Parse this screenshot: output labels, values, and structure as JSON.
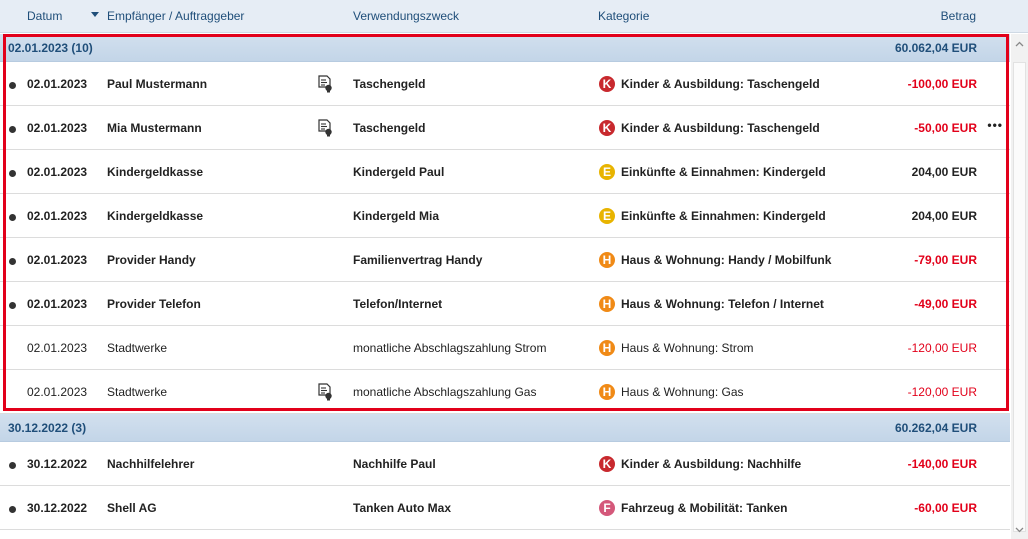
{
  "header": {
    "date": "Datum",
    "payee": "Empfänger / Auftraggeber",
    "purpose": "Verwendungszweck",
    "category": "Kategorie",
    "amount": "Betrag"
  },
  "colors": {
    "negative": "#e2001a",
    "highlight": "#e2001a",
    "cat_K": "#c8292e",
    "cat_E": "#e8b400",
    "cat_H": "#f08a16",
    "cat_F": "#d4587a"
  },
  "groups": [
    {
      "title": "02.01.2023 (10)",
      "amount": "60.062,04 EUR",
      "rows": [
        {
          "unread": true,
          "date": "02.01.2023",
          "payee": "Paul Mustermann",
          "note": true,
          "purpose": "Taschengeld",
          "cat_letter": "K",
          "category": "Kinder & Ausbildung: Taschengeld",
          "amount": "-100,00 EUR",
          "negative": true,
          "more": false
        },
        {
          "unread": true,
          "date": "02.01.2023",
          "payee": "Mia Mustermann",
          "note": true,
          "purpose": "Taschengeld",
          "cat_letter": "K",
          "category": "Kinder & Ausbildung: Taschengeld",
          "amount": "-50,00 EUR",
          "negative": true,
          "more": true
        },
        {
          "unread": true,
          "date": "02.01.2023",
          "payee": "Kindergeldkasse",
          "note": false,
          "purpose": "Kindergeld Paul",
          "cat_letter": "E",
          "category": "Einkünfte & Einnahmen: Kindergeld",
          "amount": "204,00 EUR",
          "negative": false,
          "more": false
        },
        {
          "unread": true,
          "date": "02.01.2023",
          "payee": "Kindergeldkasse",
          "note": false,
          "purpose": "Kindergeld Mia",
          "cat_letter": "E",
          "category": "Einkünfte & Einnahmen: Kindergeld",
          "amount": "204,00 EUR",
          "negative": false,
          "more": false
        },
        {
          "unread": true,
          "date": "02.01.2023",
          "payee": "Provider Handy",
          "note": false,
          "purpose": "Familienvertrag Handy",
          "cat_letter": "H",
          "category": "Haus & Wohnung: Handy / Mobilfunk",
          "amount": "-79,00 EUR",
          "negative": true,
          "more": false
        },
        {
          "unread": true,
          "date": "02.01.2023",
          "payee": "Provider Telefon",
          "note": false,
          "purpose": "Telefon/Internet",
          "cat_letter": "H",
          "category": "Haus & Wohnung: Telefon / Internet",
          "amount": "-49,00 EUR",
          "negative": true,
          "more": false
        },
        {
          "unread": false,
          "date": "02.01.2023",
          "payee": "Stadtwerke",
          "note": false,
          "purpose": "monatliche Abschlagszahlung Strom",
          "cat_letter": "H",
          "category": "Haus & Wohnung: Strom",
          "amount": "-120,00 EUR",
          "negative": true,
          "more": false
        },
        {
          "unread": false,
          "date": "02.01.2023",
          "payee": "Stadtwerke",
          "note": true,
          "purpose": "monatliche Abschlagszahlung Gas",
          "cat_letter": "H",
          "category": "Haus & Wohnung: Gas",
          "amount": "-120,00 EUR",
          "negative": true,
          "more": false
        }
      ]
    },
    {
      "title": "30.12.2022 (3)",
      "amount": "60.262,04 EUR",
      "rows": [
        {
          "unread": true,
          "date": "30.12.2022",
          "payee": "Nachhilfelehrer",
          "note": false,
          "purpose": "Nachhilfe Paul",
          "cat_letter": "K",
          "category": "Kinder & Ausbildung: Nachhilfe",
          "amount": "-140,00 EUR",
          "negative": true,
          "more": false
        },
        {
          "unread": true,
          "date": "30.12.2022",
          "payee": "Shell AG",
          "note": false,
          "purpose": "Tanken Auto Max",
          "cat_letter": "F",
          "category": "Fahrzeug & Mobilität: Tanken",
          "amount": "-60,00 EUR",
          "negative": true,
          "more": false
        }
      ]
    }
  ]
}
